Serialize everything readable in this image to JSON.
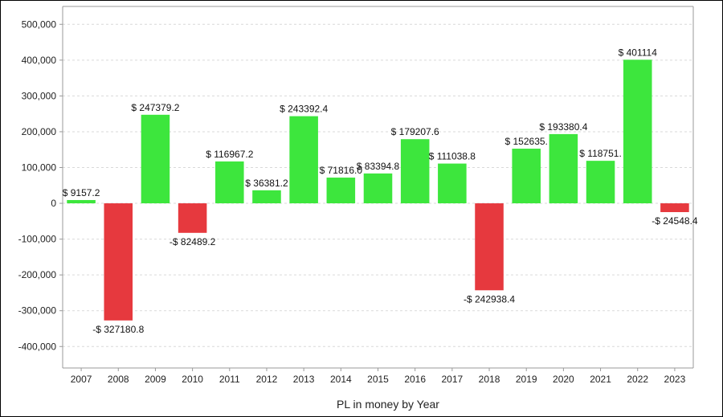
{
  "chart_data": {
    "type": "bar",
    "title": "",
    "xlabel": "PL in money by Year",
    "ylabel": "",
    "ylim": [
      -460000,
      550000
    ],
    "y_ticks": [
      500000,
      400000,
      300000,
      200000,
      100000,
      0,
      -100000,
      -200000,
      -300000,
      -400000
    ],
    "y_tick_labels": [
      "500,000",
      "400,000",
      "300,000",
      "200,000",
      "100,000",
      "0",
      "-100,000",
      "-200,000",
      "-300,000",
      "-400,000"
    ],
    "grid": true,
    "categories": [
      "2007",
      "2008",
      "2009",
      "2010",
      "2011",
      "2012",
      "2013",
      "2014",
      "2015",
      "2016",
      "2017",
      "2018",
      "2019",
      "2020",
      "2021",
      "2022",
      "2023"
    ],
    "values": [
      9157.2,
      -327180.8,
      247379.2,
      -82489.2,
      116967.2,
      36381.2,
      243392.4,
      71816.0,
      83394.8,
      179207.6,
      111038.8,
      -242938.4,
      152635.0,
      193380.4,
      118751.0,
      401114,
      -24548.4
    ],
    "data_labels": [
      "$ 9157.2",
      "-$ 327180.8",
      "$ 247379.2",
      "-$ 82489.2",
      "$ 116967.2",
      "$ 36381.2",
      "$ 243392.4",
      "$ 71816.0",
      "$ 83394.8",
      "$ 179207.6",
      "$ 111038.8",
      "-$ 242938.4",
      "$ 152635.",
      "$ 193380.4",
      "$ 118751.",
      "$ 401114",
      "-$ 24548.4"
    ],
    "colors": {
      "positive": "#3de63d",
      "negative": "#e6393e",
      "grid": "#d9d9d9",
      "axis": "#999999"
    }
  }
}
